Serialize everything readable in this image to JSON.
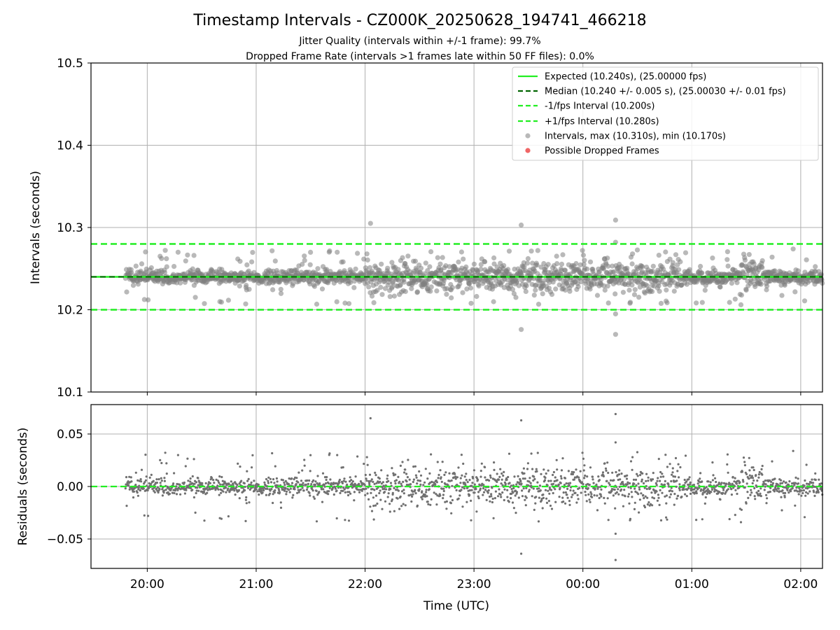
{
  "chart_data": {
    "title": "Timestamp Intervals - CZ000K_20250628_194741_466218",
    "subtitles": [
      "Jitter Quality (intervals within +/-1 frame): 99.7%",
      "Dropped Frame Rate (intervals >1 frames late within 50 FF files): 0.0%"
    ],
    "xlabel": "Time (UTC)",
    "x_range": [
      "2025-06-28 19:29",
      "2025-06-29 02:12"
    ],
    "x_ticks": [
      "20:00",
      "21:00",
      "22:00",
      "23:00",
      "00:00",
      "01:00",
      "02:00"
    ],
    "panels": [
      {
        "type": "scatter",
        "ylabel": "Intervals (seconds)",
        "ylim": [
          10.1,
          10.5
        ],
        "y_ticks": [
          "10.1",
          "10.2",
          "10.3",
          "10.4",
          "10.5"
        ],
        "grid": true,
        "legend_placement": "upper-right",
        "series": [
          {
            "name": "Expected (10.240s), (25.00000 fps)",
            "type": "line",
            "y": 10.24,
            "style": "solid",
            "color": "#22ee22"
          },
          {
            "name": "Median (10.240 +/- 0.005 s), (25.00030 +/- 0.01 fps)",
            "type": "line",
            "y": 10.24,
            "style": "dashed",
            "color": "#006400"
          },
          {
            "name": "-1/fps Interval (10.200s)",
            "type": "line",
            "y": 10.2,
            "style": "dashed",
            "color": "#22ee22"
          },
          {
            "name": "+1/fps Interval (10.280s)",
            "type": "line",
            "y": 10.28,
            "style": "dashed",
            "color": "#22ee22"
          },
          {
            "name": "Intervals, max (10.310s), min (10.170s)",
            "type": "scatter",
            "color": "#808080"
          },
          {
            "name": "Possible Dropped Frames",
            "type": "scatter",
            "color": "#ee5555",
            "points": []
          }
        ],
        "notable_points": [
          {
            "x": "2025-06-28 22:03",
            "y": 10.305
          },
          {
            "x": "2025-06-28 23:26",
            "y": 10.303
          },
          {
            "x": "2025-06-29 00:18",
            "y": 10.309
          },
          {
            "x": "2025-06-29 00:18",
            "y": 10.282
          },
          {
            "x": "2025-06-28 23:26",
            "y": 10.176
          },
          {
            "x": "2025-06-29 00:18",
            "y": 10.195
          },
          {
            "x": "2025-06-29 00:18",
            "y": 10.17
          }
        ]
      },
      {
        "type": "scatter",
        "ylabel": "Residuals (seconds)",
        "ylim": [
          -0.078,
          0.078
        ],
        "y_ticks": [
          "0.05",
          "0.00",
          "−0.05"
        ],
        "grid": true,
        "series": [
          {
            "name": "Zero",
            "type": "line",
            "y": 0,
            "style": "dashed",
            "color": "#22ee22"
          },
          {
            "name": "Residuals",
            "type": "scatter",
            "color": "#707070"
          }
        ],
        "notable_points": [
          {
            "x": "2025-06-28 22:03",
            "y": 0.066
          },
          {
            "x": "2025-06-28 23:26",
            "y": 0.064
          },
          {
            "x": "2025-06-29 00:18",
            "y": 0.07
          },
          {
            "x": "2025-06-29 00:18",
            "y": 0.042
          },
          {
            "x": "2025-06-28 23:26",
            "y": -0.063
          },
          {
            "x": "2025-06-29 00:18",
            "y": -0.045
          },
          {
            "x": "2025-06-29 00:18",
            "y": -0.07
          }
        ]
      }
    ],
    "colors": {
      "expected": "#22ee22",
      "median": "#006400",
      "points": "#808080",
      "dropped": "#ee5555",
      "grid": "#b0b0b0"
    }
  }
}
